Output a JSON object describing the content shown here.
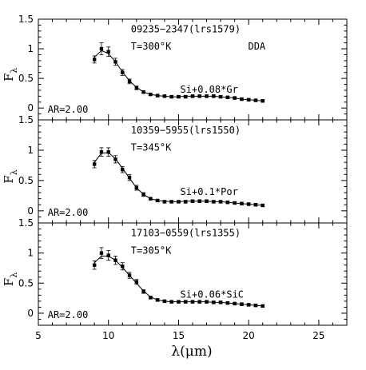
{
  "chart_data": {
    "type": "scatter",
    "xlabel": "λ(μm)",
    "ylabel": "F",
    "ylabel_sub": "λ",
    "xlim": [
      5,
      27
    ],
    "ylim": [
      -0.2,
      1.5
    ],
    "x_ticks": [
      5,
      10,
      15,
      20,
      25
    ],
    "x_tick_labels": [
      "5",
      "10",
      "15",
      "20",
      "25"
    ],
    "y_ticks": [
      0,
      0.5,
      1,
      1.5
    ],
    "y_tick_labels": [
      "0",
      "0.5",
      "1",
      "1.5"
    ],
    "grid": false,
    "legend": "none",
    "panels": [
      {
        "name": "09235−2347(lrs1579)",
        "temperature": "T=300°K",
        "model": "Si+0.08*Gr",
        "axial_ratio": "AR=2.00",
        "extra_label": "DDA",
        "x": [
          9.0,
          9.5,
          10.0,
          10.5,
          11.0,
          11.5,
          12.0,
          12.5,
          13.0,
          13.5,
          14.0,
          14.5,
          15.0,
          15.5,
          16.0,
          16.5,
          17.0,
          17.5,
          18.0,
          18.5,
          19.0,
          19.5,
          20.0,
          20.5,
          21.0
        ],
        "y": [
          0.82,
          1.0,
          0.95,
          0.78,
          0.6,
          0.45,
          0.34,
          0.27,
          0.23,
          0.21,
          0.2,
          0.19,
          0.19,
          0.19,
          0.2,
          0.2,
          0.2,
          0.2,
          0.19,
          0.18,
          0.17,
          0.15,
          0.14,
          0.13,
          0.12
        ],
        "err": [
          0.06,
          0.1,
          0.08,
          0.06,
          0.05,
          0.04,
          0.03,
          0.02,
          0.02,
          0.02,
          0.02,
          0.02,
          0.02,
          0.02,
          0.02,
          0.02,
          0.02,
          0.02,
          0.02,
          0.02,
          0.02,
          0.02,
          0.02,
          0.02,
          0.02
        ],
        "model_x": [
          9.0,
          9.5,
          10.0,
          10.5,
          11.0,
          11.5,
          12.0,
          12.5,
          13.0,
          13.5,
          14.0,
          14.5,
          15.0,
          15.5,
          16.0,
          16.5,
          17.0,
          17.5,
          18.0,
          18.5,
          19.0,
          19.5,
          20.0,
          20.5,
          21.0
        ],
        "model_y": [
          0.86,
          0.97,
          0.92,
          0.78,
          0.61,
          0.46,
          0.35,
          0.27,
          0.23,
          0.21,
          0.2,
          0.19,
          0.19,
          0.2,
          0.2,
          0.2,
          0.2,
          0.2,
          0.19,
          0.18,
          0.17,
          0.15,
          0.14,
          0.13,
          0.12
        ]
      },
      {
        "name": "10359−5955(lrs1550)",
        "temperature": "T=345°K",
        "model": "Si+0.1*Por",
        "axial_ratio": "AR=2.00",
        "extra_label": "",
        "x": [
          9.0,
          9.5,
          10.0,
          10.5,
          11.0,
          11.5,
          12.0,
          12.5,
          13.0,
          13.5,
          14.0,
          14.5,
          15.0,
          15.5,
          16.0,
          16.5,
          17.0,
          17.5,
          18.0,
          18.5,
          19.0,
          19.5,
          20.0,
          20.5,
          21.0
        ],
        "y": [
          0.77,
          0.97,
          0.97,
          0.85,
          0.68,
          0.55,
          0.38,
          0.27,
          0.2,
          0.17,
          0.15,
          0.15,
          0.15,
          0.15,
          0.16,
          0.16,
          0.16,
          0.15,
          0.15,
          0.14,
          0.13,
          0.12,
          0.11,
          0.1,
          0.09
        ],
        "err": [
          0.06,
          0.07,
          0.07,
          0.06,
          0.05,
          0.05,
          0.04,
          0.03,
          0.02,
          0.02,
          0.02,
          0.02,
          0.02,
          0.02,
          0.02,
          0.02,
          0.02,
          0.02,
          0.02,
          0.02,
          0.02,
          0.02,
          0.02,
          0.02,
          0.02
        ],
        "model_x": [
          9.0,
          9.5,
          10.0,
          10.5,
          11.0,
          11.5,
          12.0,
          12.5,
          13.0,
          13.5,
          14.0,
          14.5,
          15.0,
          15.5,
          16.0,
          16.5,
          17.0,
          17.5,
          18.0,
          18.5,
          19.0,
          19.5,
          20.0,
          20.5,
          21.0
        ],
        "model_y": [
          0.8,
          0.95,
          0.96,
          0.86,
          0.7,
          0.54,
          0.38,
          0.27,
          0.2,
          0.17,
          0.16,
          0.15,
          0.15,
          0.16,
          0.16,
          0.16,
          0.16,
          0.15,
          0.15,
          0.14,
          0.13,
          0.12,
          0.11,
          0.1,
          0.09
        ]
      },
      {
        "name": "17103−0559(lrs1355)",
        "temperature": "T=305°K",
        "model": "Si+0.06*SiC",
        "axial_ratio": "AR=2.00",
        "extra_label": "",
        "x": [
          9.0,
          9.5,
          10.0,
          10.5,
          11.0,
          11.5,
          12.0,
          12.5,
          13.0,
          13.5,
          14.0,
          14.5,
          15.0,
          15.5,
          16.0,
          16.5,
          17.0,
          17.5,
          18.0,
          18.5,
          19.0,
          19.5,
          20.0,
          20.5,
          21.0
        ],
        "y": [
          0.8,
          1.0,
          0.96,
          0.88,
          0.78,
          0.63,
          0.52,
          0.36,
          0.26,
          0.22,
          0.2,
          0.19,
          0.19,
          0.19,
          0.19,
          0.19,
          0.19,
          0.18,
          0.18,
          0.17,
          0.16,
          0.15,
          0.14,
          0.13,
          0.12
        ],
        "err": [
          0.07,
          0.09,
          0.08,
          0.07,
          0.06,
          0.05,
          0.04,
          0.03,
          0.02,
          0.02,
          0.02,
          0.02,
          0.02,
          0.02,
          0.02,
          0.02,
          0.02,
          0.02,
          0.02,
          0.02,
          0.02,
          0.02,
          0.02,
          0.02,
          0.02
        ],
        "model_x": [
          9.0,
          9.5,
          10.0,
          10.5,
          11.0,
          11.5,
          12.0,
          12.5,
          13.0,
          13.5,
          14.0,
          14.5,
          15.0,
          15.5,
          16.0,
          16.5,
          17.0,
          17.5,
          18.0,
          18.5,
          19.0,
          19.5,
          20.0,
          20.5,
          21.0
        ],
        "model_y": [
          0.84,
          0.95,
          0.95,
          0.88,
          0.76,
          0.63,
          0.5,
          0.37,
          0.27,
          0.22,
          0.2,
          0.19,
          0.19,
          0.19,
          0.19,
          0.19,
          0.19,
          0.18,
          0.18,
          0.17,
          0.16,
          0.15,
          0.14,
          0.13,
          0.12
        ]
      }
    ]
  }
}
